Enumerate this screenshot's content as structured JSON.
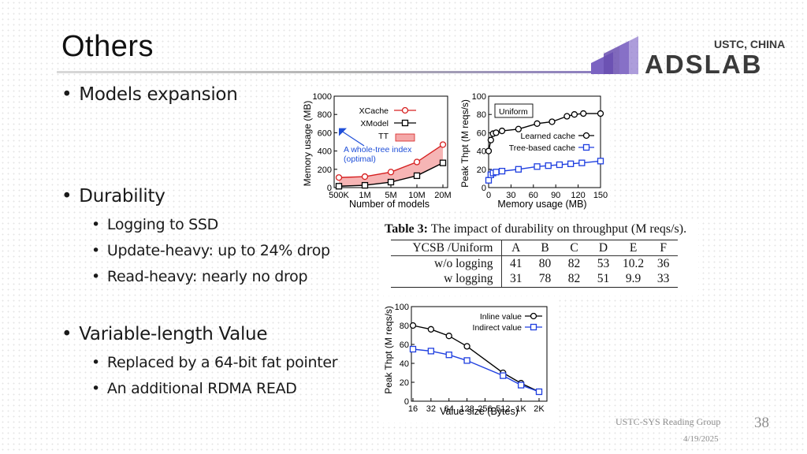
{
  "slide": {
    "title": "Others",
    "logo": {
      "top_text": "USTC, CHINA",
      "word": "ADSLAB",
      "colors": {
        "purple": "#6a4fb0",
        "dark": "#3a3a3a"
      }
    },
    "footer": {
      "group": "USTC-SYS Reading Group",
      "date": "4/19/2025",
      "page": "38"
    }
  },
  "bullets": {
    "models": "Models expansion",
    "durability": "Durability",
    "durability_subs": [
      "Logging to SSD",
      "Update-heavy: up to 24% drop",
      "Read-heavy: nearly no drop"
    ],
    "variable": "Variable-length Value",
    "variable_subs": [
      "Replaced by a 64-bit fat pointer",
      "An additional RDMA READ"
    ]
  },
  "chart_data": [
    {
      "type": "line",
      "xlabel": "Number of models",
      "ylabel": "Memory usage (MB)",
      "categories": [
        "500K",
        "1M",
        "5M",
        "10M",
        "20M"
      ],
      "ylim": [
        0,
        1000
      ],
      "yticks": [
        "0",
        "200",
        "400",
        "600",
        "800",
        "1000"
      ],
      "series": [
        {
          "name": "XCache",
          "values": [
            110,
            120,
            170,
            280,
            470
          ],
          "color": "#d62020",
          "marker": "circle"
        },
        {
          "name": "XModel",
          "values": [
            15,
            25,
            60,
            130,
            270
          ],
          "color": "#000000",
          "marker": "square"
        }
      ],
      "area": {
        "name": "TT",
        "color": "#f4a8a8"
      },
      "point": {
        "category": "500K",
        "value": 650,
        "color": "#1f4fd8"
      },
      "annotation": [
        "A whole-tree index",
        "(optimal)"
      ]
    },
    {
      "type": "line",
      "xlabel": "Memory usage (MB)",
      "ylabel": "Peak Thpt (M reqs/s)",
      "x": [
        0,
        30,
        60,
        90,
        120,
        150
      ],
      "xlim": [
        0,
        150
      ],
      "ylim": [
        0,
        100
      ],
      "yticks": [
        "0",
        "20",
        "40",
        "60",
        "80",
        "100"
      ],
      "badge": "Uniform",
      "series": [
        {
          "name": "Learned cache",
          "x": [
            0,
            3,
            6,
            10,
            18,
            40,
            65,
            85,
            105,
            115,
            127,
            150
          ],
          "values": [
            40,
            52,
            59,
            60,
            62,
            64,
            70,
            72,
            78,
            80,
            81,
            81
          ],
          "color": "#000000",
          "marker": "circle"
        },
        {
          "name": "Tree-based cache",
          "x": [
            0,
            3,
            6,
            10,
            18,
            40,
            65,
            80,
            95,
            110,
            125,
            150
          ],
          "values": [
            8,
            14,
            16,
            17,
            18,
            20,
            23,
            24,
            25,
            26,
            27,
            29
          ],
          "color": "#1f3fe0",
          "marker": "square"
        }
      ]
    },
    {
      "type": "table",
      "caption_bold": "Table 3:",
      "caption": "The impact of durability on throughput (M reqs/s).",
      "columns": [
        "YCSB /Uniform",
        "A",
        "B",
        "C",
        "D",
        "E",
        "F"
      ],
      "rows": [
        [
          "w/o logging",
          "41",
          "80",
          "82",
          "53",
          "10.2",
          "36"
        ],
        [
          "w logging",
          "31",
          "78",
          "82",
          "51",
          "9.9",
          "33"
        ]
      ]
    },
    {
      "type": "line",
      "xlabel": "Value size (Bytes)",
      "ylabel": "Peak Thpt (M reqs/s)",
      "categories": [
        "16",
        "32",
        "64",
        "128",
        "256",
        "512",
        "1K",
        "2K"
      ],
      "ylim": [
        0,
        100
      ],
      "yticks": [
        "0",
        "20",
        "40",
        "60",
        "80",
        "100"
      ],
      "series": [
        {
          "name": "Inline value",
          "x": [
            0,
            1,
            2,
            3,
            5,
            6,
            7
          ],
          "values": [
            80,
            76,
            69,
            58,
            30,
            19,
            10
          ],
          "color": "#000000",
          "marker": "circle"
        },
        {
          "name": "Indirect value",
          "x": [
            0,
            1,
            2,
            3,
            5,
            6,
            7
          ],
          "values": [
            55,
            53,
            49,
            43,
            27,
            17,
            10
          ],
          "color": "#1f3fe0",
          "marker": "square"
        }
      ]
    }
  ]
}
